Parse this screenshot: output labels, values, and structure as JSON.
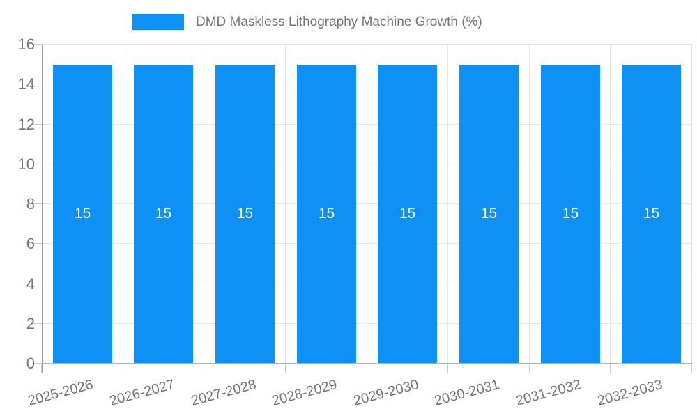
{
  "legend": {
    "label": "DMD Maskless Lithography Machine Growth (%)"
  },
  "chart_data": {
    "type": "bar",
    "title": "DMD Maskless Lithography Machine Growth (%)",
    "categories": [
      "2025-2026",
      "2026-2027",
      "2027-2028",
      "2028-2029",
      "2029-2030",
      "2030-2031",
      "2031-2032",
      "2032-2033"
    ],
    "series": [
      {
        "name": "DMD Maskless Lithography Machine Growth (%)",
        "values": [
          15,
          15,
          15,
          15,
          15,
          15,
          15,
          15
        ]
      }
    ],
    "bar_value_labels": [
      "15",
      "15",
      "15",
      "15",
      "15",
      "15",
      "15",
      "15"
    ],
    "xlabel": "",
    "ylabel": "",
    "ylim": [
      0,
      16
    ],
    "yticks": [
      0,
      2,
      4,
      6,
      8,
      10,
      12,
      14,
      16
    ],
    "grid": true,
    "legend_position": "top",
    "colors": {
      "bar": "#0e90f5",
      "bar_value_label": "#ffffff",
      "axis_text": "#757575",
      "gridline": "#e6e6e6",
      "tick": "#cccccc",
      "axis_line": "#9e9e9e",
      "baseline": "#b3b3b3",
      "background": "#ffffff"
    }
  }
}
